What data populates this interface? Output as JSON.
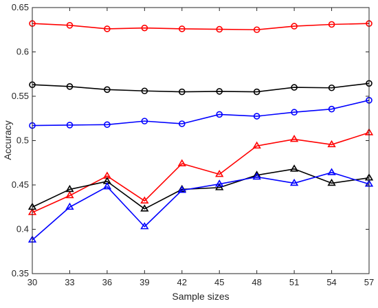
{
  "chart_data": {
    "type": "line",
    "title": "",
    "xlabel": "Sample sizes",
    "ylabel": "Accuracy",
    "x": [
      30,
      33,
      36,
      39,
      42,
      45,
      48,
      51,
      54,
      57
    ],
    "xlim": [
      30,
      57
    ],
    "ylim": [
      0.35,
      0.65
    ],
    "xticks": [
      "30",
      "33",
      "36",
      "39",
      "42",
      "45",
      "48",
      "51",
      "54",
      "57"
    ],
    "yticks": [
      "0.35",
      "0.4",
      "0.45",
      "0.5",
      "0.55",
      "0.6",
      "0.65"
    ],
    "grid": false,
    "legend": "none",
    "series": [
      {
        "color": "#ff0000",
        "marker": "circle",
        "values": [
          0.632,
          0.63,
          0.626,
          0.627,
          0.626,
          0.6255,
          0.625,
          0.629,
          0.631,
          0.632
        ]
      },
      {
        "color": "#000000",
        "marker": "circle",
        "values": [
          0.563,
          0.561,
          0.5575,
          0.556,
          0.555,
          0.5555,
          0.555,
          0.56,
          0.5595,
          0.5645
        ]
      },
      {
        "color": "#0000ff",
        "marker": "circle",
        "values": [
          0.517,
          0.5175,
          0.518,
          0.522,
          0.519,
          0.5295,
          0.5275,
          0.532,
          0.5355,
          0.5455
        ]
      },
      {
        "color": "#ff0000",
        "marker": "triangle",
        "values": [
          0.419,
          0.438,
          0.46,
          0.432,
          0.474,
          0.462,
          0.494,
          0.5015,
          0.4955,
          0.509
        ]
      },
      {
        "color": "#000000",
        "marker": "triangle",
        "values": [
          0.425,
          0.445,
          0.454,
          0.423,
          0.445,
          0.447,
          0.461,
          0.468,
          0.452,
          0.458
        ]
      },
      {
        "color": "#0000ff",
        "marker": "triangle",
        "values": [
          0.388,
          0.425,
          0.448,
          0.403,
          0.444,
          0.451,
          0.459,
          0.452,
          0.464,
          0.451
        ]
      }
    ]
  }
}
